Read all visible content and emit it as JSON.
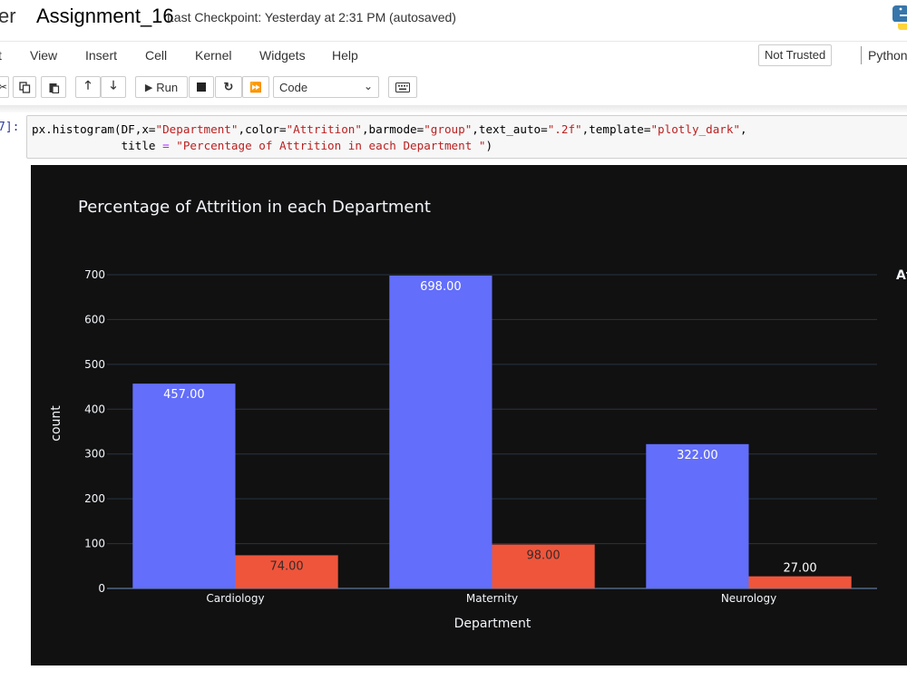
{
  "header": {
    "brand": "er",
    "notebook_title": "Assignment_16",
    "checkpoint": "Last Checkpoint: Yesterday at 2:31 PM",
    "autosave": "(autosaved)",
    "logo_icon": "python-logo-icon"
  },
  "menubar": {
    "items": [
      "t",
      "View",
      "Insert",
      "Cell",
      "Kernel",
      "Widgets",
      "Help"
    ],
    "trust_label": "Not Trusted",
    "kernel_label": "Python"
  },
  "toolbar": {
    "run_label": "Run",
    "cell_type": "Code",
    "icons": [
      "cut-icon",
      "copy-icon",
      "paste-icon",
      "move-up-icon",
      "move-down-icon",
      "run-icon",
      "stop-icon",
      "restart-icon",
      "fast-forward-icon",
      "keyboard-icon"
    ]
  },
  "cell": {
    "prompt": "7]:",
    "code_line1_parts": [
      "px.histogram(DF,x=",
      "\"Department\"",
      ",color=",
      "\"Attrition\"",
      ",barmode=",
      "\"group\"",
      ",text_auto=",
      "\".2f\"",
      ",template=",
      "\"plotly_dark\"",
      ","
    ],
    "code_line2_parts": [
      "             title ",
      "=",
      " ",
      "\"Percentage of Attrition in each Department \"",
      ")"
    ]
  },
  "chart_data": {
    "type": "bar",
    "title": "Percentage of Attrition in each Department",
    "xlabel": "Department",
    "ylabel": "count",
    "categories": [
      "Cardiology",
      "Maternity",
      "Neurology"
    ],
    "series": [
      {
        "values": [
          457,
          698,
          322
        ],
        "labels": [
          "457.00",
          "698.00",
          "322.00"
        ],
        "color": "#636efa"
      },
      {
        "values": [
          74,
          98,
          27
        ],
        "labels": [
          "74.00",
          "98.00",
          "27.00"
        ],
        "color": "#ef553b"
      }
    ],
    "ylim": [
      0,
      700
    ],
    "yticks": [
      0,
      100,
      200,
      300,
      400,
      500,
      600,
      700
    ],
    "legend_title_partial": "At",
    "legend_position": "right",
    "background": "#111111",
    "grid": true
  }
}
